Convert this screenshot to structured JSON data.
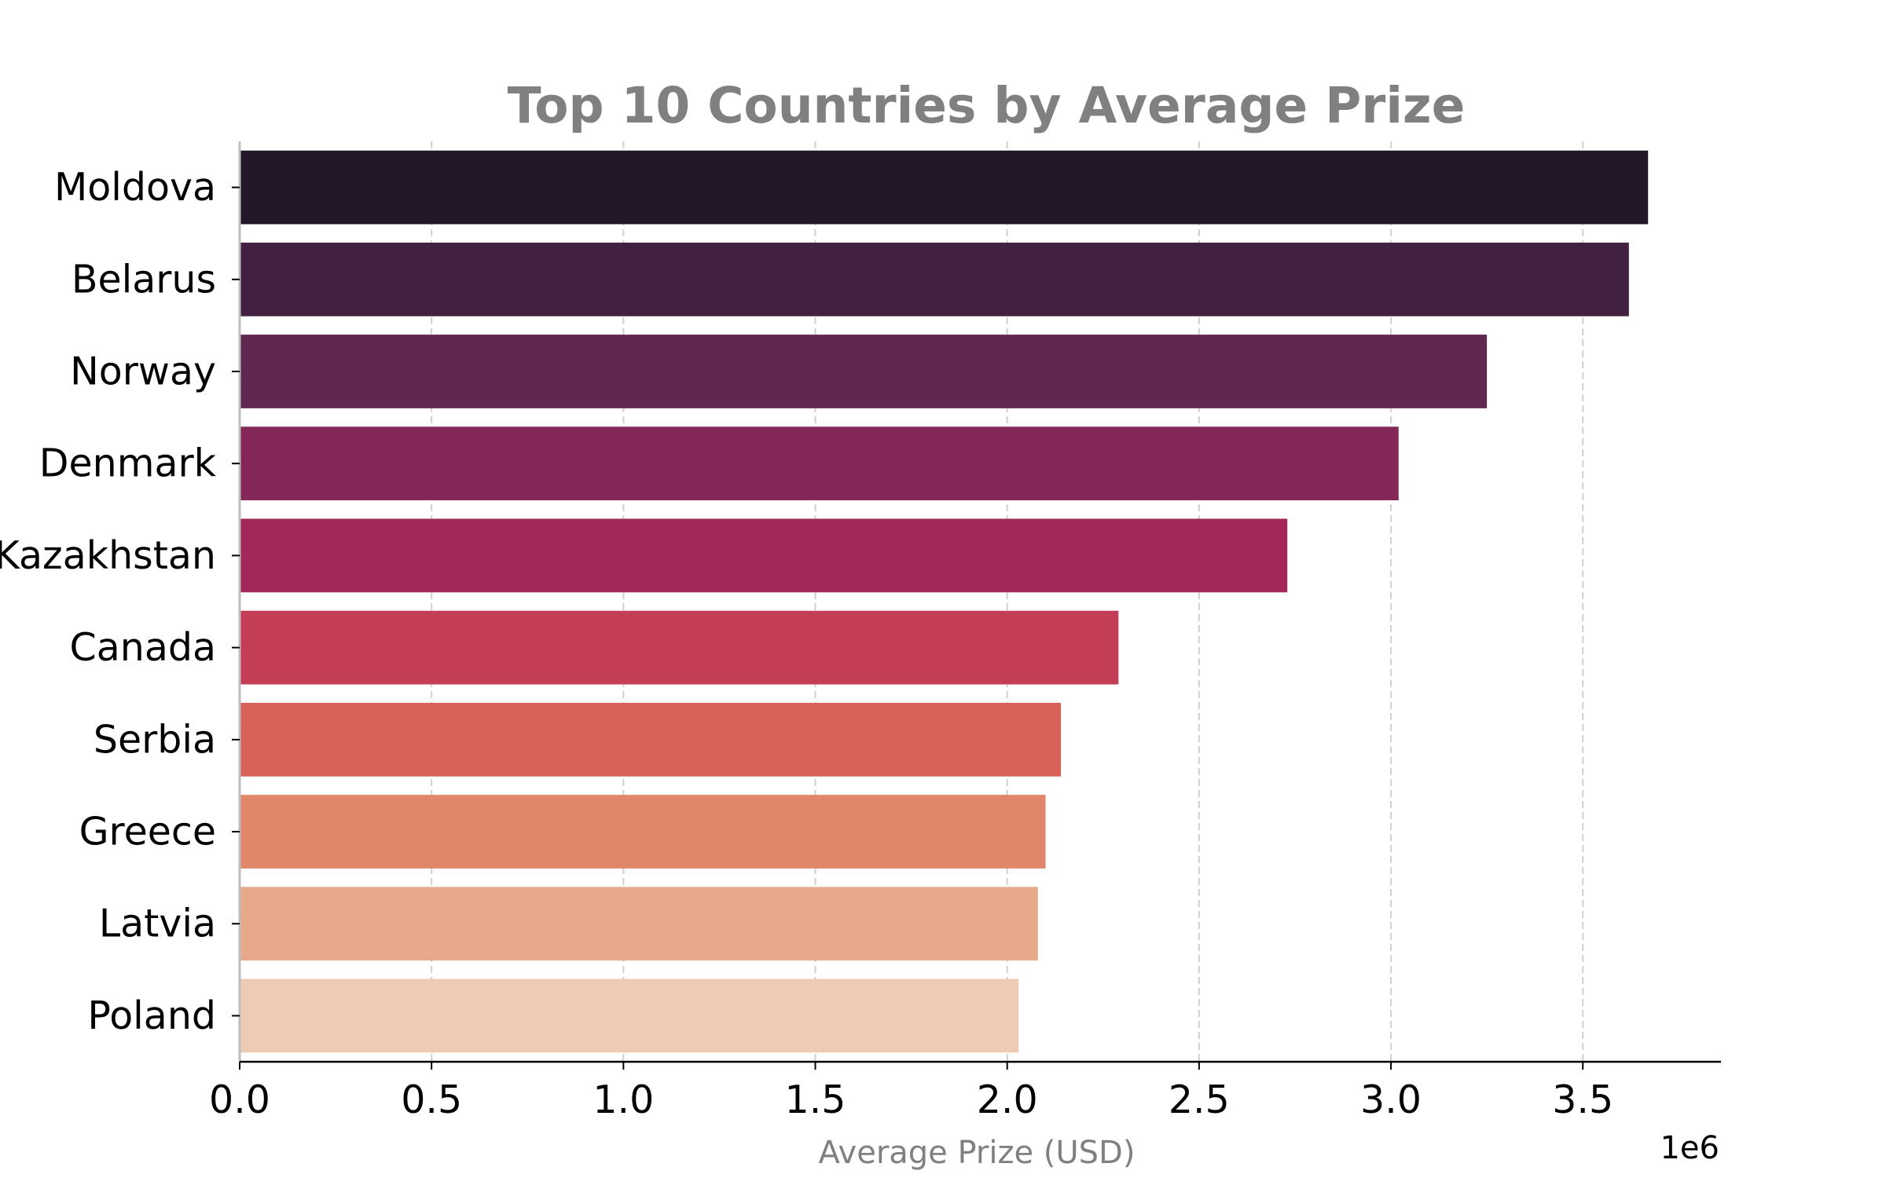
{
  "chart_data": {
    "type": "bar",
    "orientation": "horizontal",
    "title": "Top 10 Countries by Average Prize",
    "xlabel": "Average Prize (USD)",
    "ylabel": "",
    "x_offset_label": "1e6",
    "xlim": [
      0,
      3.86
    ],
    "xticks": [
      "0.0",
      "0.5",
      "1.0",
      "1.5",
      "2.0",
      "2.5",
      "3.0",
      "3.5"
    ],
    "grid": "vertical dashed",
    "categories": [
      "Moldova",
      "Belarus",
      "Norway",
      "Denmark",
      "Kazakhstan",
      "Canada",
      "Serbia",
      "Greece",
      "Latvia",
      "Poland"
    ],
    "values": [
      3.67,
      3.62,
      3.25,
      3.02,
      2.73,
      2.29,
      2.14,
      2.1,
      2.08,
      2.03
    ],
    "colors": [
      "#231729",
      "#412040",
      "#60274f",
      "#842957",
      "#a3275a",
      "#c43d56",
      "#d86257",
      "#e0866b",
      "#e7a989",
      "#eecbb4"
    ],
    "value_scale": 1000000
  }
}
